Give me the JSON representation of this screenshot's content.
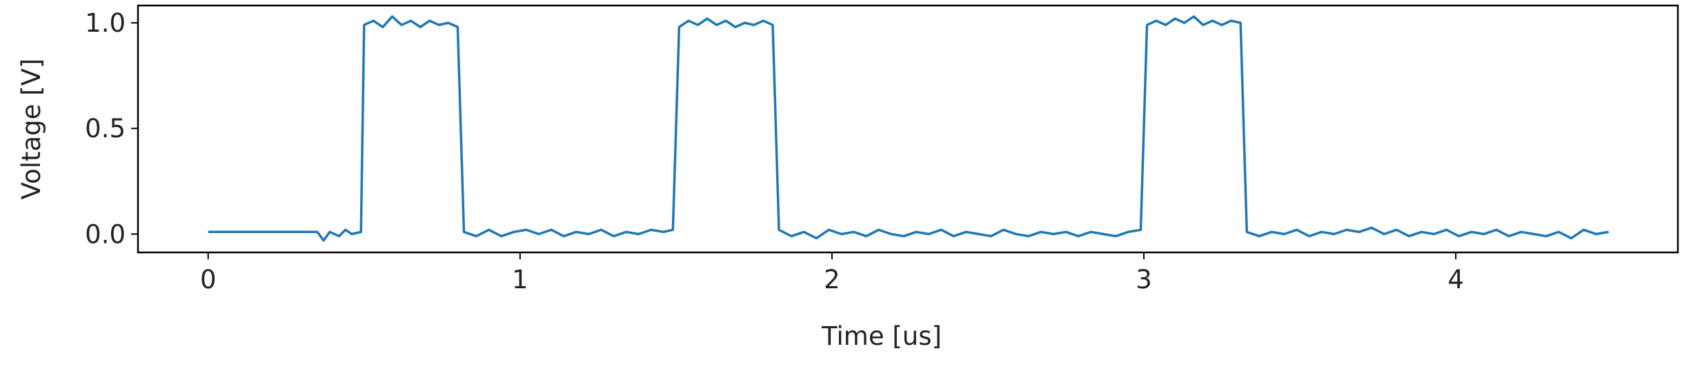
{
  "chart_data": {
    "type": "line",
    "x_label": "Time [us]",
    "y_label": "Voltage [V]",
    "xlim": [
      -0.225,
      4.712
    ],
    "ylim": [
      -0.087,
      1.082
    ],
    "xticks": [
      0,
      1,
      2,
      3,
      4
    ],
    "yticks": [
      {
        "value": 0,
        "label": "0.0"
      },
      {
        "value": 0.5,
        "label": "0.5"
      },
      {
        "value": 1,
        "label": "1.0"
      }
    ],
    "grid": false,
    "x": [
      0,
      0.35,
      0.37,
      0.39,
      0.42,
      0.44,
      0.46,
      0.49,
      0.5,
      0.53,
      0.56,
      0.59,
      0.62,
      0.65,
      0.68,
      0.71,
      0.74,
      0.77,
      0.8,
      0.82,
      0.86,
      0.9,
      0.94,
      0.98,
      1.02,
      1.06,
      1.1,
      1.14,
      1.18,
      1.22,
      1.26,
      1.3,
      1.34,
      1.38,
      1.42,
      1.46,
      1.49,
      1.51,
      1.54,
      1.57,
      1.6,
      1.63,
      1.66,
      1.69,
      1.72,
      1.75,
      1.78,
      1.81,
      1.83,
      1.87,
      1.91,
      1.95,
      1.99,
      2.03,
      2.07,
      2.11,
      2.15,
      2.19,
      2.23,
      2.27,
      2.31,
      2.35,
      2.39,
      2.43,
      2.47,
      2.51,
      2.55,
      2.59,
      2.63,
      2.67,
      2.71,
      2.75,
      2.79,
      2.83,
      2.87,
      2.91,
      2.95,
      2.99,
      3.01,
      3.04,
      3.07,
      3.1,
      3.13,
      3.16,
      3.19,
      3.22,
      3.25,
      3.28,
      3.31,
      3.33,
      3.37,
      3.41,
      3.45,
      3.49,
      3.53,
      3.57,
      3.61,
      3.65,
      3.69,
      3.73,
      3.77,
      3.81,
      3.85,
      3.89,
      3.93,
      3.97,
      4.01,
      4.05,
      4.09,
      4.13,
      4.17,
      4.21,
      4.25,
      4.29,
      4.33,
      4.37,
      4.41,
      4.45,
      4.49
    ],
    "series": [
      {
        "color": "#1f77b4",
        "values": [
          0.01,
          0.01,
          -0.03,
          0.01,
          -0.01,
          0.02,
          0,
          0.01,
          0.99,
          1.01,
          0.98,
          1.03,
          0.99,
          1.01,
          0.98,
          1.01,
          0.99,
          1,
          0.98,
          0.01,
          -0.01,
          0.02,
          -0.01,
          0.01,
          0.02,
          0,
          0.02,
          -0.01,
          0.01,
          0,
          0.02,
          -0.01,
          0.01,
          0,
          0.02,
          0.01,
          0.02,
          0.98,
          1.01,
          0.99,
          1.02,
          0.99,
          1.01,
          0.98,
          1,
          0.99,
          1.01,
          0.99,
          0.02,
          -0.01,
          0.01,
          -0.02,
          0.02,
          0,
          0.01,
          -0.01,
          0.02,
          0,
          -0.01,
          0.01,
          0,
          0.02,
          -0.01,
          0.01,
          0,
          -0.01,
          0.02,
          0,
          -0.01,
          0.01,
          0,
          0.01,
          -0.01,
          0.01,
          0,
          -0.01,
          0.01,
          0.02,
          0.99,
          1.01,
          0.99,
          1.02,
          1,
          1.03,
          0.99,
          1.01,
          0.99,
          1.01,
          1,
          0.01,
          -0.01,
          0.01,
          0,
          0.02,
          -0.01,
          0.01,
          0,
          0.02,
          0.01,
          0.03,
          0,
          0.02,
          -0.01,
          0.01,
          0,
          0.02,
          -0.01,
          0.01,
          0,
          0.02,
          -0.01,
          0.01,
          0,
          -0.01,
          0.01,
          -0.02,
          0.02,
          0,
          0.01
        ]
      }
    ]
  }
}
